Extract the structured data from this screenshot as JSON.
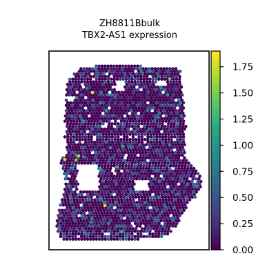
{
  "chart_data": {
    "type": "heatmap",
    "subtype": "spatial-spot-expression",
    "title_lines": [
      "ZH8811Bbulk",
      "TBX2-AS1 expression"
    ],
    "xlabel": "",
    "ylabel": "",
    "colorbar": {
      "colormap": "viridis",
      "range": [
        0.0,
        1.9
      ],
      "ticks": [
        0.0,
        0.25,
        0.5,
        0.75,
        1.0,
        1.25,
        1.5,
        1.75
      ],
      "tick_labels": [
        "0.00",
        "0.25",
        "0.50",
        "0.75",
        "1.00",
        "1.25",
        "1.50",
        "1.75"
      ]
    },
    "background_value": 0.0,
    "spot_count_approx": 2000,
    "tissue_shape_note": "irregular hexagonal spot grid; tissue outline estimated, individual spot values estimated",
    "colors": {
      "cmap_low": "#440154",
      "cmap_mid": "#21918c",
      "cmap_high": "#fde725",
      "axes": "#000000",
      "background": "#ffffff"
    }
  }
}
